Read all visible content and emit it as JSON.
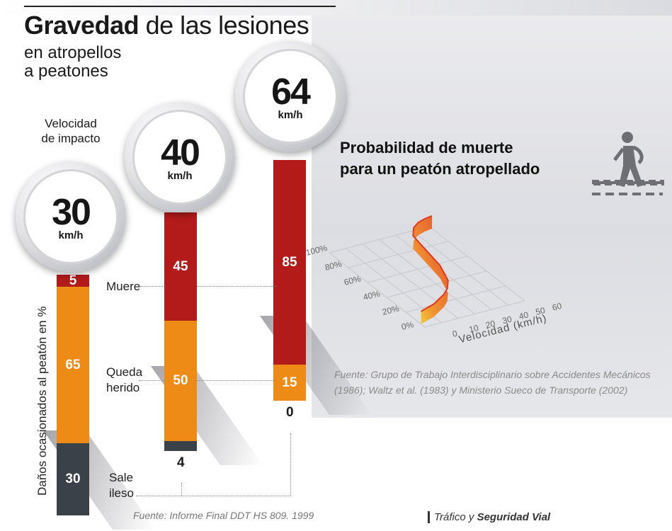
{
  "title": {
    "bold": "Gravedad",
    "rest": " de las lesiones"
  },
  "subtitle": "en atropellos\na peatones",
  "speed_label": "Velocidad\nde impacto",
  "unit": "km/h",
  "yaxis_label": "Daños ocasionados al peatón en %",
  "row_labels": {
    "death": "Muere",
    "injury": "Queda\nherido",
    "unhurt": "Sale\nileso"
  },
  "source_bars": "Fuente: Informe Final DDT HS 809. 1999",
  "colors": {
    "death": "#b31b1b",
    "injury": "#ee8a16",
    "unhurt": "#3a4148",
    "curve": "#e23a1c"
  },
  "chart_data": [
    {
      "type": "bar",
      "stacked": true,
      "categories": [
        "30",
        "40",
        "64"
      ],
      "series": [
        {
          "name": "Muere",
          "values": [
            5,
            45,
            85
          ]
        },
        {
          "name": "Queda herido",
          "values": [
            65,
            50,
            15
          ]
        },
        {
          "name": "Sale ileso",
          "values": [
            30,
            4,
            0
          ]
        }
      ],
      "xlabel": "Velocidad de impacto",
      "ylabel": "Daños ocasionados al peatón en %",
      "ylim": [
        0,
        100
      ]
    },
    {
      "type": "line",
      "title": "Probabilidad de muerte\npara un peatón atropellado",
      "xlabel": "Velocidad (km/h)",
      "ylabel": "",
      "x": [
        0,
        10,
        20,
        25,
        30,
        35,
        40,
        45,
        50,
        55,
        60
      ],
      "values": [
        4,
        8,
        15,
        20,
        28,
        45,
        82,
        90,
        94,
        96,
        97
      ],
      "xticks": [
        "0",
        "10",
        "20",
        "30",
        "40",
        "50",
        "60"
      ],
      "yticks": [
        "0%",
        "20%",
        "40%",
        "60%",
        "80%",
        "100%"
      ],
      "xlim": [
        0,
        60
      ],
      "ylim": [
        0,
        100
      ],
      "grid": true,
      "source": "Fuente: Grupo de Trabajo Interdisciplinario sobre Accidentes Mecánicos (1986); Waltz et al. (1983) y Ministerio Sueco de Transporte (2002)"
    }
  ],
  "credit": {
    "italic": "Tráfico y ",
    "bold": "Seguridad Vial"
  }
}
